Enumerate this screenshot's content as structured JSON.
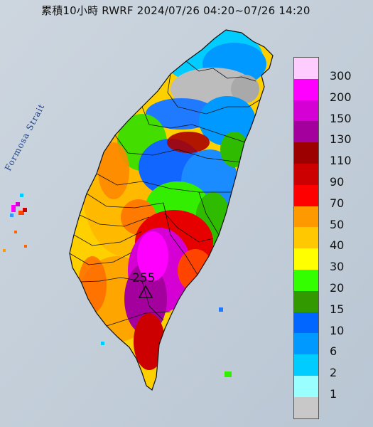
{
  "title": "累積10小時 RWRF 2024/07/26 04:20~07/26 14:20",
  "strait_label": "Formosa Strait",
  "peak": {
    "value": "255",
    "icon": "triangle-marker-icon"
  },
  "legend": [
    {
      "label": "300",
      "color": "#ffccff"
    },
    {
      "label": "200",
      "color": "#ff00ff"
    },
    {
      "label": "150",
      "color": "#d400d4"
    },
    {
      "label": "130",
      "color": "#a3009e"
    },
    {
      "label": "110",
      "color": "#9c0000"
    },
    {
      "label": "90",
      "color": "#cc0000"
    },
    {
      "label": "70",
      "color": "#ff0000"
    },
    {
      "label": "50",
      "color": "#ff9900"
    },
    {
      "label": "40",
      "color": "#ffc800"
    },
    {
      "label": "30",
      "color": "#ffff00"
    },
    {
      "label": "20",
      "color": "#33ff00"
    },
    {
      "label": "15",
      "color": "#339900"
    },
    {
      "label": "10",
      "color": "#0066ff"
    },
    {
      "label": "6",
      "color": "#0099ff"
    },
    {
      "label": "2",
      "color": "#00ccff"
    },
    {
      "label": "1",
      "color": "#99ffff"
    },
    {
      "label": "",
      "color": "#c8c8c8"
    }
  ]
}
